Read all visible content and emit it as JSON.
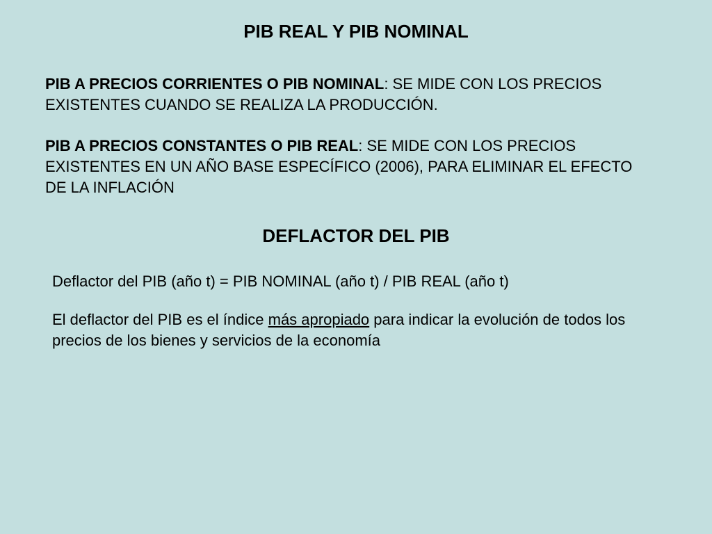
{
  "colors": {
    "background": "#c3dfdf",
    "text": "#000000"
  },
  "typography": {
    "font_family": "Arial, Helvetica, sans-serif",
    "title_fontsize": 26,
    "body_fontsize": 22
  },
  "slide": {
    "main_title": "PIB REAL Y PIB NOMINAL",
    "definition1": {
      "label_bold": "PIB A PRECIOS CORRIENTES O PIB NOMINAL",
      "text": ": SE MIDE CON LOS PRECIOS EXISTENTES CUANDO SE REALIZA LA PRODUCCIÓN."
    },
    "definition2": {
      "label_bold": "PIB A PRECIOS CONSTANTES O PIB REAL",
      "text": ": SE MIDE CON LOS PRECIOS EXISTENTES EN UN AÑO BASE ESPECÍFICO (2006), PARA ELIMINAR EL EFECTO DE LA INFLACIÓN"
    },
    "sub_title": "DEFLACTOR DEL PIB",
    "formula": "Deflactor del PIB (año t) = PIB NOMINAL (año t) / PIB REAL (año t)",
    "explanation": {
      "part1": "El deflactor del PIB es el índice ",
      "underlined": "más apropiado",
      "part2": " para indicar la evolución de todos los precios de los bienes y servicios de la economía"
    }
  }
}
